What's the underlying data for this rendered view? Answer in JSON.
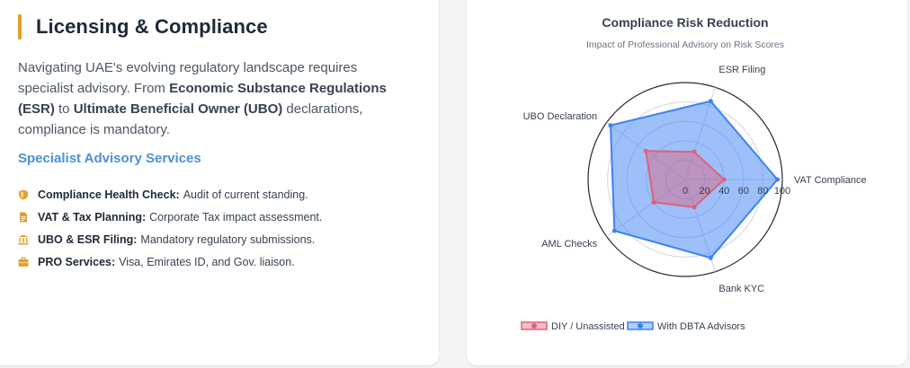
{
  "left": {
    "title": "Licensing & Compliance",
    "intro": {
      "p1": "Navigating UAE's evolving regulatory landscape requires specialist advisory. From ",
      "b1": "Economic Substance Regulations (ESR)",
      "p2": " to ",
      "b2": "Ultimate Beneficial Owner (UBO)",
      "p3": " declarations, compliance is mandatory."
    },
    "services_heading": "Specialist Advisory Services",
    "services": [
      {
        "icon": "shield-icon",
        "label": "Compliance Health Check:",
        "desc": "Audit of current standing."
      },
      {
        "icon": "file-invoice-icon",
        "label": "VAT & Tax Planning:",
        "desc": "Corporate Tax impact assessment."
      },
      {
        "icon": "building-icon",
        "label": "UBO & ESR Filing:",
        "desc": "Mandatory regulatory submissions."
      },
      {
        "icon": "briefcase-icon",
        "label": "PRO Services:",
        "desc": "Visa, Emirates ID, and Gov. liaison."
      }
    ],
    "accent_color": "#e2a12b",
    "icon_color": "#e2a12b",
    "heading_color": "#4a90d9"
  },
  "chart_data": {
    "type": "radar",
    "title": "Compliance Risk Reduction",
    "subtitle": "Impact of Professional Advisory on Risk Scores",
    "categories": [
      "VAT Compliance",
      "ESR Filing",
      "UBO Declaration",
      "AML Checks",
      "Bank KYC"
    ],
    "rlim": [
      0,
      100
    ],
    "ticks": [
      0,
      20,
      40,
      60,
      80,
      100
    ],
    "series": [
      {
        "name": "DIY / Unassisted",
        "color": "#e0607a",
        "values": [
          40,
          30,
          50,
          40,
          30
        ]
      },
      {
        "name": "With DBTA Advisors",
        "color": "#3b82f6",
        "values": [
          95,
          85,
          95,
          90,
          85
        ]
      }
    ],
    "legend_position": "bottom"
  }
}
